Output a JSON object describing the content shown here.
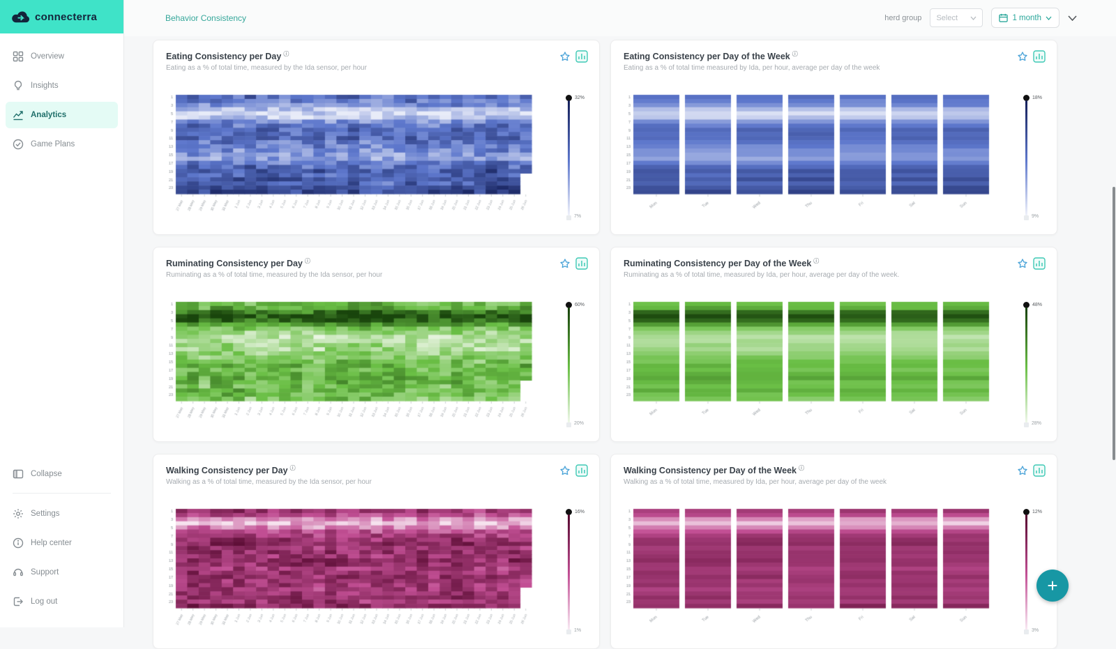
{
  "brand": {
    "name": "connecterra",
    "logo_bg": "#3fe3c8",
    "accent": "#2aa79b"
  },
  "sidebar": {
    "items": [
      {
        "label": "Overview",
        "icon": "grid",
        "active": false
      },
      {
        "label": "Insights",
        "icon": "lightbulb",
        "active": false
      },
      {
        "label": "Analytics",
        "icon": "chart",
        "active": true
      },
      {
        "label": "Game Plans",
        "icon": "check-circle",
        "active": false
      }
    ],
    "footer_items": [
      {
        "label": "Collapse",
        "icon": "collapse",
        "divider_after": true
      },
      {
        "label": "Settings",
        "icon": "gear"
      },
      {
        "label": "Help center",
        "icon": "help"
      },
      {
        "label": "Support",
        "icon": "support"
      },
      {
        "label": "Log out",
        "icon": "logout"
      }
    ]
  },
  "header": {
    "breadcrumb": "Behavior Consistency",
    "herd_group_label": "herd group",
    "herd_group_placeholder": "Select",
    "period_label": "1 month"
  },
  "fab": {
    "label": "+"
  },
  "chart_data": [
    {
      "id": "eating-daily",
      "type": "heatmap",
      "mode": "daily",
      "title": "Eating Consistency per Day",
      "subtitle": "Eating as a % of total time, measured by the Ida sensor, per hour",
      "palette": {
        "light": "#f1f3fb",
        "mid": "#5d77cc",
        "dark": "#131e58"
      },
      "scale": {
        "max": "32%",
        "min": "7%"
      },
      "x_labels": [
        "27 May",
        "28 May",
        "29 May",
        "30 May",
        "31 May",
        "1 Jun",
        "2 Jun",
        "3 Jun",
        "4 Jun",
        "5 Jun",
        "6 Jun",
        "7 Jun",
        "8 Jun",
        "9 Jun",
        "10 Jun",
        "11 Jun",
        "12 Jun",
        "13 Jun",
        "14 Jun",
        "15 Jun",
        "16 Jun",
        "17 Jun",
        "18 Jun",
        "19 Jun",
        "20 Jun",
        "21 Jun",
        "22 Jun",
        "23 Jun",
        "24 Jun",
        "25 Jun",
        "26 Jun"
      ],
      "y_ticks": [
        "1",
        "3",
        "5",
        "7",
        "9",
        "11",
        "13",
        "15",
        "17",
        "19",
        "21",
        "23"
      ],
      "row_profile": [
        0.55,
        0.5,
        0.42,
        0.22,
        0.1,
        0.18,
        0.4,
        0.52,
        0.62,
        0.58,
        0.6,
        0.52,
        0.46,
        0.42,
        0.38,
        0.34,
        0.48,
        0.58,
        0.66,
        0.62,
        0.7,
        0.6,
        0.72,
        0.78
      ],
      "noise": 0.17,
      "seed": 11
    },
    {
      "id": "eating-weekly",
      "type": "heatmap",
      "mode": "weekly",
      "title": "Eating Consistency per Day of the Week",
      "subtitle": "Eating as a % of total time measured by Ida, per hour, average per day of the week",
      "palette": {
        "light": "#f1f3fb",
        "mid": "#5d77cc",
        "dark": "#131e58"
      },
      "scale": {
        "max": "18%",
        "min": "9%"
      },
      "x_labels": [
        "Mon",
        "Tue",
        "Wed",
        "Thu",
        "Fri",
        "Sat",
        "Sun"
      ],
      "y_ticks": [
        "1",
        "3",
        "5",
        "7",
        "9",
        "11",
        "13",
        "15",
        "17",
        "19",
        "21",
        "23"
      ],
      "row_profile": [
        0.55,
        0.5,
        0.42,
        0.22,
        0.1,
        0.18,
        0.4,
        0.52,
        0.62,
        0.58,
        0.6,
        0.52,
        0.46,
        0.42,
        0.38,
        0.34,
        0.48,
        0.58,
        0.66,
        0.62,
        0.7,
        0.6,
        0.72,
        0.78
      ],
      "noise": 0.05,
      "seed": 22
    },
    {
      "id": "ruminating-daily",
      "type": "heatmap",
      "mode": "daily",
      "title": "Ruminating Consistency per Day",
      "subtitle": "Ruminating as a % of total time, measured by the Ida sensor, per hour",
      "palette": {
        "light": "#f1f8ec",
        "mid": "#6abf45",
        "dark": "#16400a"
      },
      "scale": {
        "max": "60%",
        "min": "20%"
      },
      "x_labels": [
        "27 May",
        "28 May",
        "29 May",
        "30 May",
        "31 May",
        "1 Jun",
        "2 Jun",
        "3 Jun",
        "4 Jun",
        "5 Jun",
        "6 Jun",
        "7 Jun",
        "8 Jun",
        "9 Jun",
        "10 Jun",
        "11 Jun",
        "12 Jun",
        "13 Jun",
        "14 Jun",
        "15 Jun",
        "16 Jun",
        "17 Jun",
        "18 Jun",
        "19 Jun",
        "20 Jun",
        "21 Jun",
        "22 Jun",
        "23 Jun",
        "24 Jun",
        "25 Jun",
        "26 Jun"
      ],
      "y_ticks": [
        "1",
        "3",
        "5",
        "7",
        "9",
        "11",
        "13",
        "15",
        "17",
        "19",
        "21",
        "23"
      ],
      "row_profile": [
        0.5,
        0.55,
        0.8,
        0.92,
        0.85,
        0.62,
        0.42,
        0.3,
        0.22,
        0.24,
        0.28,
        0.26,
        0.33,
        0.4,
        0.46,
        0.52,
        0.48,
        0.52,
        0.56,
        0.5,
        0.46,
        0.52,
        0.48,
        0.42
      ],
      "noise": 0.17,
      "seed": 33
    },
    {
      "id": "ruminating-weekly",
      "type": "heatmap",
      "mode": "weekly",
      "title": "Ruminating Consistency per Day of the Week",
      "subtitle": "Ruminating as a % of total time, measured by Ida, per hour, average per day of the week.",
      "palette": {
        "light": "#f1f8ec",
        "mid": "#6abf45",
        "dark": "#16400a"
      },
      "scale": {
        "max": "48%",
        "min": "28%"
      },
      "x_labels": [
        "Mon",
        "Tue",
        "Wed",
        "Thu",
        "Fri",
        "Sat",
        "Sun"
      ],
      "y_ticks": [
        "1",
        "3",
        "5",
        "7",
        "9",
        "11",
        "13",
        "15",
        "17",
        "19",
        "21",
        "23"
      ],
      "row_profile": [
        0.5,
        0.55,
        0.8,
        0.92,
        0.85,
        0.62,
        0.42,
        0.3,
        0.22,
        0.24,
        0.28,
        0.26,
        0.33,
        0.4,
        0.46,
        0.52,
        0.48,
        0.52,
        0.56,
        0.5,
        0.46,
        0.52,
        0.48,
        0.42
      ],
      "noise": 0.05,
      "seed": 44
    },
    {
      "id": "walking-daily",
      "type": "heatmap",
      "mode": "daily",
      "title": "Walking Consistency per Day",
      "subtitle": "Walking as a % of total time, measured by the Ida sensor, per hour",
      "palette": {
        "light": "#f9ebf4",
        "mid": "#c24f94",
        "dark": "#55082e"
      },
      "scale": {
        "max": "16%",
        "min": "1%"
      },
      "x_labels": [
        "27 May",
        "28 May",
        "29 May",
        "30 May",
        "31 May",
        "1 Jun",
        "2 Jun",
        "3 Jun",
        "4 Jun",
        "5 Jun",
        "6 Jun",
        "7 Jun",
        "8 Jun",
        "9 Jun",
        "10 Jun",
        "11 Jun",
        "12 Jun",
        "13 Jun",
        "14 Jun",
        "15 Jun",
        "16 Jun",
        "17 Jun",
        "18 Jun",
        "19 Jun",
        "20 Jun",
        "21 Jun",
        "22 Jun",
        "23 Jun",
        "24 Jun",
        "25 Jun",
        "26 Jun"
      ],
      "y_ticks": [
        "1",
        "3",
        "5",
        "7",
        "9",
        "11",
        "13",
        "15",
        "17",
        "19",
        "21",
        "23"
      ],
      "row_profile": [
        0.68,
        0.58,
        0.3,
        0.16,
        0.34,
        0.55,
        0.66,
        0.72,
        0.76,
        0.7,
        0.73,
        0.68,
        0.76,
        0.7,
        0.64,
        0.7,
        0.73,
        0.67,
        0.7,
        0.64,
        0.7,
        0.73,
        0.67,
        0.76
      ],
      "noise": 0.17,
      "seed": 55
    },
    {
      "id": "walking-weekly",
      "type": "heatmap",
      "mode": "weekly",
      "title": "Walking Consistency per Day of the Week",
      "subtitle": "Walking as a % of total time, measured by Ida, per hour, average per day of the week",
      "palette": {
        "light": "#f9ebf4",
        "mid": "#c24f94",
        "dark": "#55082e"
      },
      "scale": {
        "max": "12%",
        "min": "3%"
      },
      "x_labels": [
        "Mon",
        "Tue",
        "Wed",
        "Thu",
        "Fri",
        "Sat",
        "Sun"
      ],
      "y_ticks": [
        "1",
        "3",
        "5",
        "7",
        "9",
        "11",
        "13",
        "15",
        "17",
        "19",
        "21",
        "23"
      ],
      "row_profile": [
        0.68,
        0.58,
        0.3,
        0.16,
        0.34,
        0.55,
        0.66,
        0.72,
        0.76,
        0.7,
        0.73,
        0.68,
        0.76,
        0.7,
        0.64,
        0.7,
        0.73,
        0.67,
        0.7,
        0.64,
        0.7,
        0.73,
        0.67,
        0.76
      ],
      "noise": 0.05,
      "seed": 66
    }
  ]
}
